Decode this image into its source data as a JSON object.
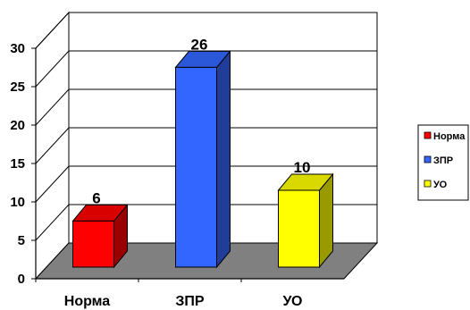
{
  "chart_data": {
    "type": "bar",
    "categories": [
      "Норма",
      "ЗПР",
      "УО"
    ],
    "values": [
      6,
      26,
      10
    ],
    "series": [
      {
        "name": "Норма",
        "value": 6,
        "color": "#ff0000"
      },
      {
        "name": "ЗПР",
        "value": 26,
        "color": "#3366ff"
      },
      {
        "name": "УО",
        "value": 10,
        "color": "#ffff00"
      }
    ],
    "ylim": [
      0,
      30
    ],
    "yticks": [
      0,
      5,
      10,
      15,
      20,
      25,
      30
    ],
    "grid": true,
    "three_d": true,
    "legend": {
      "position": "right",
      "entries": [
        "Норма",
        "ЗПР",
        "УО"
      ]
    },
    "title": "",
    "xlabel": "",
    "ylabel": ""
  }
}
